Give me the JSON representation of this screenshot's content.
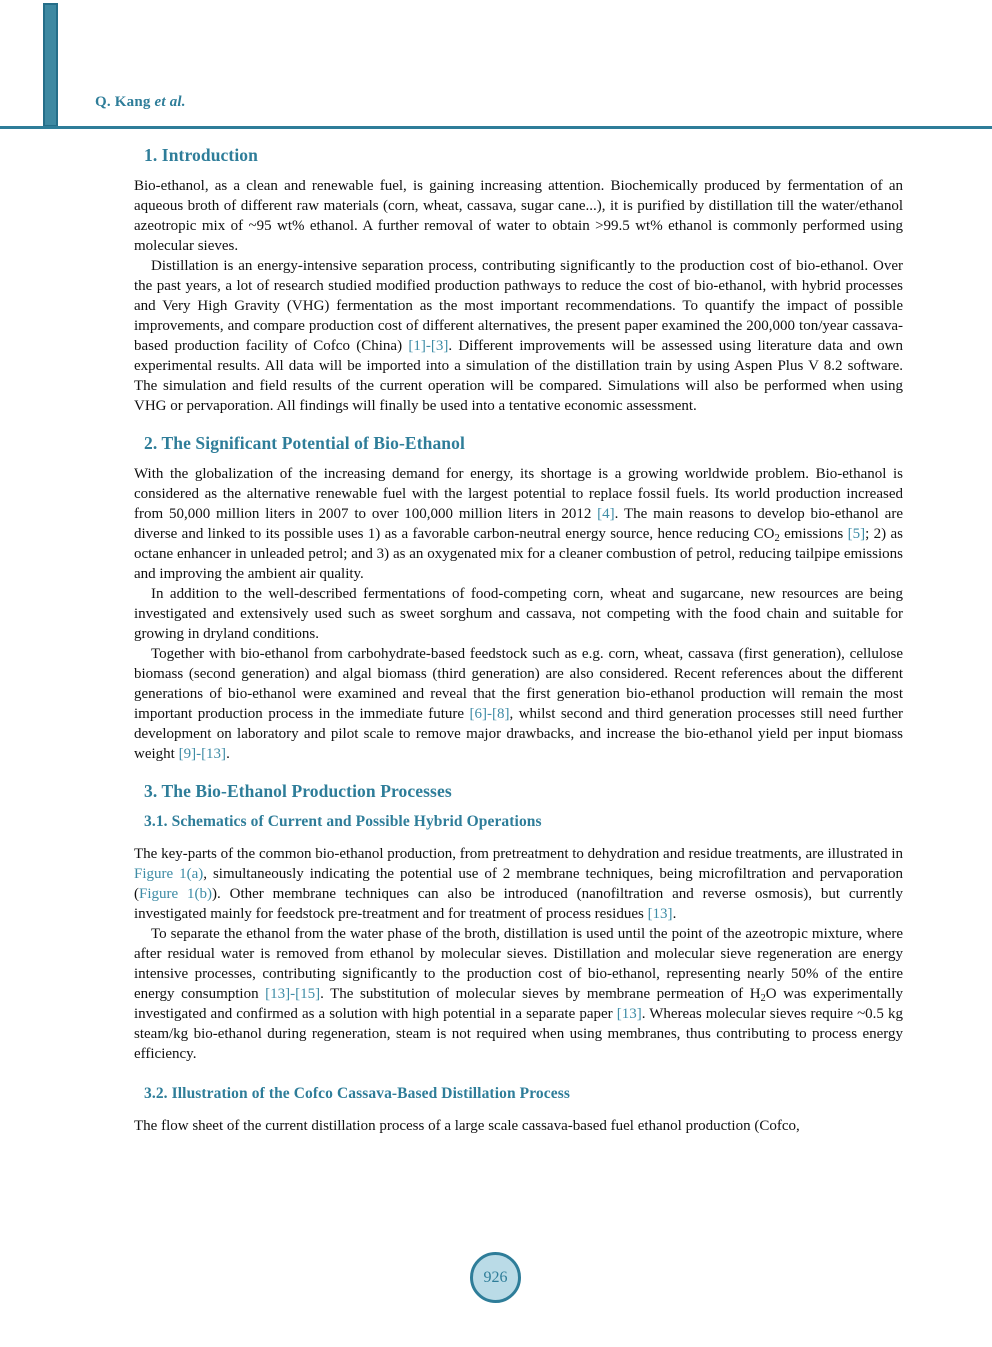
{
  "colors": {
    "accent": "#2E7D99",
    "link": "#3E8CA6",
    "circle_fill": "#BADBE7"
  },
  "header": {
    "author": "Q. Kang ",
    "etal": "et al."
  },
  "footer": {
    "page_number": "926"
  },
  "article": {
    "s1_title": "1. Introduction",
    "s1_p1": [
      {
        "t": "Bio-ethanol, as a clean and renewable fuel, is gaining increasing attention. Biochemically produced by fermentation of an aqueous broth of different raw materials (corn, wheat, cassava, sugar cane...), it is purified by distillation till the water/ethanol azeotropic mix of ~95 wt% ethanol. A further removal of water to obtain >99.5 wt% ethanol is commonly performed using molecular sieves."
      }
    ],
    "s1_p2": [
      {
        "t": "Distillation is an energy-intensive separation process, contributing significantly to the production cost of bio-ethanol. Over the past years, a lot of research studied modified production pathways to reduce the cost of bio-ethanol, with hybrid processes and Very High Gravity (VHG) fermentation as the most important recommendations. To quantify the impact of possible improvements, and compare production cost of different alternatives, the present paper examined the 200,000 ton/year cassava-based production facility of Cofco (China) "
      },
      {
        "t": "[1]-[3]",
        "link": true
      },
      {
        "t": ". Different improvements will be assessed using literature data and own experimental results. All data will be imported into a simulation of the distillation train by using Aspen Plus V 8.2 software. The simulation and field results of the current operation will be compared. Simulations will also be performed when using VHG or pervaporation. All findings will finally be used into a tentative economic assessment."
      }
    ],
    "s2_title": "2. The Significant Potential of Bio-Ethanol",
    "s2_p1": [
      {
        "t": "With the globalization of the increasing demand for energy, its shortage is a growing worldwide problem. Bio-ethanol is considered as the alternative renewable fuel with the largest potential to replace fossil fuels. Its world production increased from 50,000 million liters in 2007 to over 100,000 million liters in 2012 "
      },
      {
        "t": "[4]",
        "link": true
      },
      {
        "t": ". The main reasons to develop bio-ethanol are diverse and linked to its possible uses 1) as a favorable carbon-neutral energy source, hence reducing CO"
      },
      {
        "t": "2",
        "sub": true
      },
      {
        "t": " emissions "
      },
      {
        "t": "[5]",
        "link": true
      },
      {
        "t": "; 2) as octane enhancer in unleaded petrol; and 3) as an oxygenated mix for a cleaner combustion of petrol, reducing tailpipe emissions and improving the ambient air quality."
      }
    ],
    "s2_p2": [
      {
        "t": "In addition to the well-described fermentations of food-competing corn, wheat and sugarcane, new resources are being investigated and extensively used such as sweet sorghum and cassava, not competing with the food chain and suitable for growing in dryland conditions."
      }
    ],
    "s2_p3": [
      {
        "t": "Together with bio-ethanol from carbohydrate-based feedstock such as e.g. corn, wheat, cassava (first generation), cellulose biomass (second generation) and algal biomass (third generation) are also considered. Recent references about the different generations of bio-ethanol were examined and reveal that the first generation bio-ethanol production will remain the most important production process in the immediate future "
      },
      {
        "t": "[6]-[8]",
        "link": true
      },
      {
        "t": ", whilst second and third generation processes still need further development on laboratory and pilot scale to remove major drawbacks, and increase the bio-ethanol yield per input biomass weight "
      },
      {
        "t": "[9]-[13]",
        "link": true
      },
      {
        "t": "."
      }
    ],
    "s3_title": "3. The Bio-Ethanol Production Processes",
    "s31_title": "3.1. Schematics of Current and Possible Hybrid Operations",
    "s31_p1": [
      {
        "t": "The key-parts of the common bio-ethanol production, from pretreatment to dehydration and residue treatments, are illustrated in "
      },
      {
        "t": "Figure 1(a)",
        "link": true
      },
      {
        "t": ", simultaneously indicating the potential use of 2 membrane techniques, being microfiltration and pervaporation ("
      },
      {
        "t": "Figure 1(b)",
        "link": true
      },
      {
        "t": "). Other membrane techniques can also be introduced (nanofiltration and reverse osmosis), but currently investigated mainly for feedstock pre-treatment and for treatment of process residues "
      },
      {
        "t": "[13]",
        "link": true
      },
      {
        "t": "."
      }
    ],
    "s31_p2": [
      {
        "t": "To separate the ethanol from the water phase of the broth, distillation is used until the point of the azeotropic mixture, where after residual water is removed from ethanol by molecular sieves. Distillation and molecular sieve regeneration are energy intensive processes, contributing significantly to the production cost of bio-ethanol, representing nearly 50% of the entire energy consumption "
      },
      {
        "t": "[13]-[15]",
        "link": true
      },
      {
        "t": ". The substitution of molecular sieves by membrane permeation of H"
      },
      {
        "t": "2",
        "sub": true
      },
      {
        "t": "O was experimentally investigated and confirmed as a solution with high potential in a separate paper "
      },
      {
        "t": "[13]",
        "link": true
      },
      {
        "t": ". Whereas molecular sieves require ~0.5 kg steam/kg bio-ethanol during regeneration, steam is not required when using membranes, thus contributing to process energy efficiency."
      }
    ],
    "s32_title": "3.2. Illustration of the Cofco Cassava-Based Distillation Process",
    "s32_p1": [
      {
        "t": "The flow sheet of the current distillation process of a large scale cassava-based fuel ethanol production (Cofco,"
      }
    ]
  }
}
